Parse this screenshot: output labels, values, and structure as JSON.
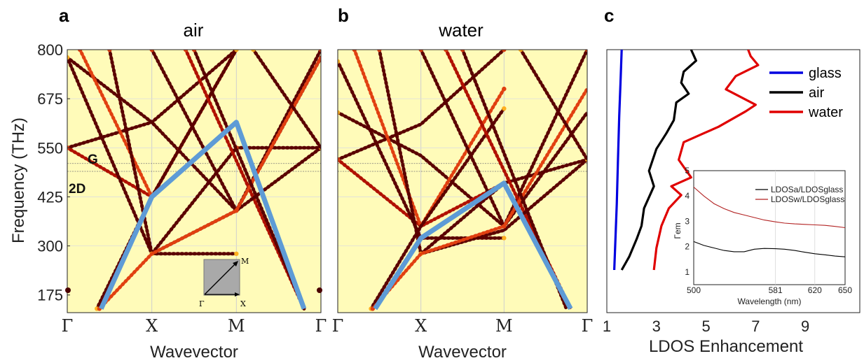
{
  "colors": {
    "panel_bg": "#fffbb9",
    "band_dark": "#5a0000",
    "band_mid": "#b01000",
    "band_bright": "#e04010",
    "band_hot": "#ffb020",
    "light_line": "#5e9bd6",
    "glass": "#0000e0",
    "air": "#000000",
    "water": "#e00000",
    "inset_water": "#b22222"
  },
  "panel_a": {
    "letter": "a",
    "title": "air",
    "ylabel": "Frequency (THz)",
    "xlabel": "Wavevector",
    "mark_G": "G",
    "mark_2D": "2D",
    "inset_M": "M",
    "inset_G": "Γ",
    "inset_X": "X"
  },
  "panel_b": {
    "letter": "b",
    "title": "water",
    "xlabel": "Wavevector"
  },
  "panel_c": {
    "letter": "c",
    "xlabel": "LDOS Enhancement"
  },
  "chart_data": [
    {
      "type": "scatter",
      "panel": "a",
      "title": "air",
      "xlabel": "Wavevector",
      "ylabel": "Frequency (THz)",
      "x_ticks": [
        "Γ",
        "X",
        "M",
        "Γ"
      ],
      "y_ticks": [
        175,
        300,
        425,
        550,
        675,
        800
      ],
      "ylim": [
        130,
        800
      ],
      "horizontal_lines": [
        510,
        490
      ],
      "light_line": {
        "x": [
          0.4,
          1.0,
          2.0,
          2.8
        ],
        "y": [
          140,
          425,
          615,
          140
        ]
      },
      "band_lines": [
        [
          [
            0,
            780
          ],
          [
            1,
            615
          ],
          [
            2,
            390
          ],
          [
            3,
            780
          ]
        ],
        [
          [
            0,
            550
          ],
          [
            1,
            615
          ],
          [
            2,
            800
          ]
        ],
        [
          [
            0,
            550
          ],
          [
            1,
            425
          ],
          [
            2,
            615
          ]
        ],
        [
          [
            0,
            780
          ],
          [
            1,
            280
          ],
          [
            2,
            280
          ]
        ],
        [
          [
            0.15,
            800
          ],
          [
            1,
            425
          ],
          [
            2,
            800
          ]
        ],
        [
          [
            0.5,
            800
          ],
          [
            1,
            280
          ],
          [
            2,
            550
          ],
          [
            3,
            550
          ]
        ],
        [
          [
            0.35,
            140
          ],
          [
            1,
            425
          ],
          [
            2,
            800
          ]
        ],
        [
          [
            1,
            800
          ],
          [
            2,
            390
          ],
          [
            3,
            800
          ]
        ],
        [
          [
            1.4,
            800
          ],
          [
            2.8,
            140
          ]
        ],
        [
          [
            1,
            280
          ],
          [
            2,
            390
          ],
          [
            3,
            550
          ]
        ],
        [
          [
            0.38,
            140
          ],
          [
            1,
            280
          ],
          [
            2,
            390
          ],
          [
            3,
            780
          ]
        ],
        [
          [
            1.5,
            800
          ],
          [
            2.8,
            140
          ]
        ],
        [
          [
            2.2,
            800
          ],
          [
            3,
            550
          ]
        ]
      ]
    },
    {
      "type": "scatter",
      "panel": "b",
      "title": "water",
      "xlabel": "Wavevector",
      "x_ticks": [
        "Γ",
        "X",
        "M",
        "Γ"
      ],
      "ylim": [
        130,
        800
      ],
      "horizontal_lines": [
        510,
        490
      ],
      "light_line": {
        "x": [
          0.45,
          1.0,
          2.0,
          2.8
        ],
        "y": [
          140,
          320,
          460,
          140
        ]
      },
      "band_lines": [
        [
          [
            0,
            640
          ],
          [
            1,
            530
          ],
          [
            2,
            350
          ],
          [
            3,
            640
          ]
        ],
        [
          [
            0,
            520
          ],
          [
            1,
            610
          ],
          [
            2,
            800
          ]
        ],
        [
          [
            0,
            520
          ],
          [
            1,
            350
          ],
          [
            2,
            460
          ]
        ],
        [
          [
            0,
            770
          ],
          [
            1,
            320
          ],
          [
            2,
            320
          ]
        ],
        [
          [
            0.2,
            800
          ],
          [
            1,
            350
          ],
          [
            2,
            700
          ]
        ],
        [
          [
            0.5,
            800
          ],
          [
            1,
            280
          ],
          [
            2,
            460
          ],
          [
            3,
            520
          ]
        ],
        [
          [
            0.4,
            140
          ],
          [
            1,
            350
          ],
          [
            2,
            650
          ]
        ],
        [
          [
            1,
            800
          ],
          [
            2,
            350
          ],
          [
            3,
            800
          ]
        ],
        [
          [
            1.3,
            800
          ],
          [
            2.8,
            140
          ]
        ],
        [
          [
            1,
            280
          ],
          [
            2,
            340
          ],
          [
            3,
            520
          ]
        ],
        [
          [
            0.42,
            140
          ],
          [
            1,
            280
          ],
          [
            2,
            350
          ],
          [
            3,
            700
          ]
        ],
        [
          [
            1.5,
            800
          ],
          [
            2.75,
            140
          ]
        ],
        [
          [
            2.2,
            800
          ],
          [
            3,
            520
          ]
        ]
      ]
    },
    {
      "type": "line",
      "panel": "c",
      "xlabel": "LDOS Enhancement",
      "x_ticks": [
        1,
        3,
        5,
        7,
        9
      ],
      "xlim": [
        1,
        11.2
      ],
      "legend": [
        "glass",
        "air",
        "water"
      ],
      "legend_position": "top-right",
      "series": [
        {
          "name": "glass",
          "x": [
            1.3,
            1.35,
            1.4,
            1.45,
            1.5,
            1.55,
            1.6
          ],
          "y": [
            0,
            0.15,
            0.3,
            0.5,
            0.7,
            0.85,
            1.0
          ]
        },
        {
          "name": "air",
          "x": [
            1.6,
            1.9,
            2.2,
            2.4,
            2.5,
            2.9,
            2.7,
            3.0,
            3.4,
            3.7,
            3.8,
            4.3,
            4.0,
            4.1,
            4.6,
            4.4
          ],
          "y": [
            0,
            0.06,
            0.14,
            0.2,
            0.28,
            0.38,
            0.45,
            0.55,
            0.62,
            0.68,
            0.76,
            0.8,
            0.85,
            0.9,
            0.95,
            1.0
          ]
        },
        {
          "name": "water",
          "x": [
            2.9,
            3.0,
            3.2,
            3.5,
            4.0,
            3.6,
            4.4,
            3.9,
            4.1,
            4.9,
            5.5,
            6.6,
            7.0,
            5.8,
            6.2,
            7.1,
            6.8,
            6.7
          ],
          "y": [
            0,
            0.1,
            0.2,
            0.28,
            0.34,
            0.38,
            0.42,
            0.5,
            0.58,
            0.62,
            0.65,
            0.72,
            0.75,
            0.82,
            0.88,
            0.93,
            0.97,
            1.0
          ]
        }
      ]
    },
    {
      "type": "line",
      "panel": "c-inset",
      "xlabel": "Wavelength (nm)",
      "ylabel": "Γem",
      "x_ticks": [
        500,
        581,
        620,
        650
      ],
      "y_ticks": [
        1,
        2,
        3,
        4,
        5
      ],
      "xlim": [
        500,
        650
      ],
      "ylim": [
        0.5,
        5
      ],
      "legend_position": "top-right",
      "series": [
        {
          "name": "LDOSa/LDOSglass",
          "x": [
            500,
            510,
            520,
            530,
            540,
            550,
            560,
            570,
            581,
            590,
            600,
            610,
            620,
            630,
            640,
            650
          ],
          "y": [
            2.2,
            2.05,
            1.95,
            1.85,
            1.8,
            1.8,
            1.9,
            1.93,
            1.92,
            1.9,
            1.85,
            1.78,
            1.72,
            1.68,
            1.63,
            1.6
          ]
        },
        {
          "name": "LDOSw/LDOSglass",
          "x": [
            500,
            510,
            520,
            530,
            540,
            550,
            560,
            570,
            581,
            590,
            600,
            610,
            620,
            630,
            640,
            650
          ],
          "y": [
            4.35,
            4.0,
            3.7,
            3.5,
            3.35,
            3.25,
            3.15,
            3.05,
            2.98,
            2.93,
            2.9,
            2.88,
            2.86,
            2.84,
            2.8,
            2.75
          ]
        }
      ]
    }
  ]
}
